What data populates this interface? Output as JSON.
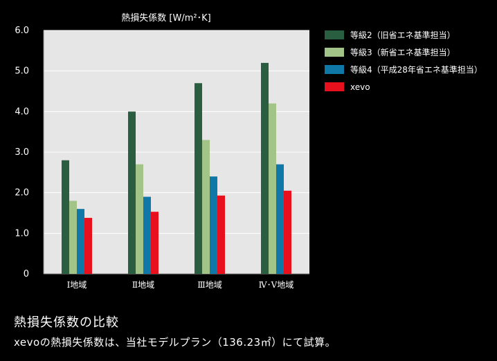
{
  "chart_data": {
    "type": "bar",
    "title": "熱損失係数 [W/m²･K]",
    "xlabel": "",
    "ylabel": "",
    "ylim": [
      0,
      6
    ],
    "yticks": [
      "0",
      "1.0",
      "2.0",
      "3.0",
      "4.0",
      "5.0",
      "6.0"
    ],
    "categories": [
      "Ⅰ地域",
      "Ⅱ地域",
      "Ⅲ地域",
      "Ⅳ･Ⅴ地域"
    ],
    "series": [
      {
        "name": "等級2（旧省エネ基準担当）",
        "color": "#2a5e40",
        "values": [
          2.8,
          4.0,
          4.7,
          5.2
        ]
      },
      {
        "name": "等級3（新省エネ基準担当）",
        "color": "#a3c489",
        "values": [
          1.8,
          2.7,
          3.3,
          4.2
        ]
      },
      {
        "name": "等級4（平成28年省エネ基準担当）",
        "color": "#0f78a8",
        "values": [
          1.6,
          1.9,
          2.4,
          2.7
        ]
      },
      {
        "name": "xevo",
        "color": "#e8101c",
        "values": [
          1.38,
          1.53,
          1.93,
          2.05
        ]
      }
    ],
    "legend_position": "top-right",
    "plot_background": "#e6e6e6"
  },
  "caption": {
    "title": "熱損失係数の比較",
    "subtitle": "xevoの熱損失係数は、当社モデルプラン（136.23㎡）にて試算。"
  }
}
